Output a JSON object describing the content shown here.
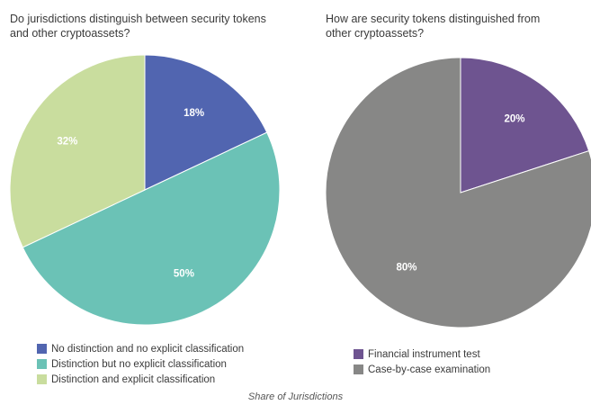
{
  "chart_data": [
    {
      "type": "pie",
      "title": "Do jurisdictions distinguish between security tokens and other cryptoassets?",
      "slices": [
        {
          "label": "No distinction and no explicit classification",
          "value": 18,
          "value_label": "18%",
          "color": "#5165b0"
        },
        {
          "label": "Distinction but no explicit classification",
          "value": 50,
          "value_label": "50%",
          "color": "#6bc2b6"
        },
        {
          "label": "Distinction and explicit classification",
          "value": 32,
          "value_label": "32%",
          "color": "#c9dd9e"
        }
      ]
    },
    {
      "type": "pie",
      "title": "How are security tokens distinguished from other cryptoassets?",
      "slices": [
        {
          "label": "Financial instrument test",
          "value": 20,
          "value_label": "20%",
          "color": "#6e5490"
        },
        {
          "label": "Case-by-case examination",
          "value": 80,
          "value_label": "80%",
          "color": "#878786"
        }
      ]
    }
  ],
  "caption": "Share of Jurisdictions"
}
